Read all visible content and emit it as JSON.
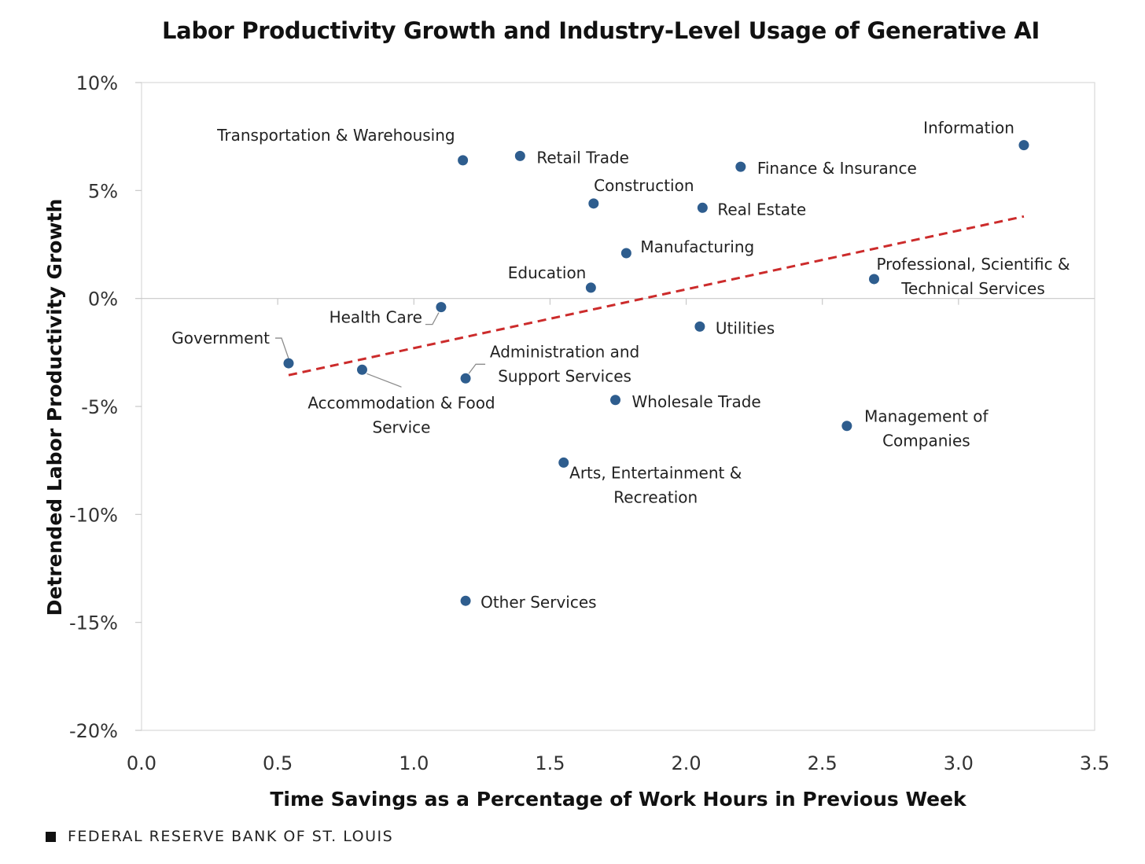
{
  "chart_data": {
    "type": "scatter",
    "title": "Labor Productivity Growth and Industry-Level Usage of Generative AI",
    "xlabel": "Time Savings as a Percentage of Work Hours in Previous Week",
    "ylabel": "Detrended Labor Productivity  Growth",
    "xlim": [
      0.0,
      3.5
    ],
    "ylim": [
      -20,
      10
    ],
    "x_ticks": [
      "0.0",
      "0.5",
      "1.0",
      "1.5",
      "2.0",
      "2.5",
      "3.0",
      "3.5"
    ],
    "y_ticks": [
      "10%",
      "5%",
      "0%",
      "-5%",
      "-10%",
      "-15%",
      "-20%"
    ],
    "grid": false,
    "point_color": "#2e5d8e",
    "trend_color": "#cc2b2b",
    "points": [
      {
        "name": "Government",
        "lines": [
          "Government"
        ],
        "x": 0.54,
        "y": -3.0
      },
      {
        "name": "Accommodation & Food Service",
        "lines": [
          "Accommodation  & Food",
          "Service"
        ],
        "x": 0.81,
        "y": -3.3
      },
      {
        "name": "Health Care",
        "lines": [
          "Health Care"
        ],
        "x": 1.1,
        "y": -0.4
      },
      {
        "name": "Transportation & Warehousing",
        "lines": [
          "Transportation  & Warehousing"
        ],
        "x": 1.18,
        "y": 6.4
      },
      {
        "name": "Administration and Support Services",
        "lines": [
          "Administration  and",
          "Support  Services"
        ],
        "x": 1.19,
        "y": -3.7
      },
      {
        "name": "Other Services",
        "lines": [
          "Other Services"
        ],
        "x": 1.19,
        "y": -14.0
      },
      {
        "name": "Retail Trade",
        "lines": [
          "Retail Trade"
        ],
        "x": 1.39,
        "y": 6.6
      },
      {
        "name": "Arts, Entertainment & Recreation",
        "lines": [
          "Arts, Entertainment  &",
          "Recreation"
        ],
        "x": 1.55,
        "y": -7.6
      },
      {
        "name": "Education",
        "lines": [
          "Education"
        ],
        "x": 1.65,
        "y": 0.5
      },
      {
        "name": "Construction",
        "lines": [
          "Construction"
        ],
        "x": 1.66,
        "y": 4.4
      },
      {
        "name": "Wholesale Trade",
        "lines": [
          "Wholesale Trade"
        ],
        "x": 1.74,
        "y": -4.7
      },
      {
        "name": "Manufacturing",
        "lines": [
          "Manufacturing"
        ],
        "x": 1.78,
        "y": 2.1
      },
      {
        "name": "Utilities",
        "lines": [
          "Utilities"
        ],
        "x": 2.05,
        "y": -1.3
      },
      {
        "name": "Real Estate",
        "lines": [
          "Real Estate"
        ],
        "x": 2.06,
        "y": 4.2
      },
      {
        "name": "Finance & Insurance",
        "lines": [
          "Finance & Insurance"
        ],
        "x": 2.2,
        "y": 6.1
      },
      {
        "name": "Management of Companies",
        "lines": [
          "Management  of",
          "Companies"
        ],
        "x": 2.59,
        "y": -5.9
      },
      {
        "name": "Professional, Scientific & Technical Services",
        "lines": [
          "Professional, Scientific &",
          "Technical Services"
        ],
        "x": 2.69,
        "y": 0.9
      },
      {
        "name": "Information",
        "lines": [
          "Information"
        ],
        "x": 3.24,
        "y": 7.1
      }
    ],
    "trendline": {
      "x": [
        0.54,
        3.24
      ],
      "y": [
        -3.55,
        3.8
      ],
      "style": "dashed"
    }
  },
  "footer": {
    "source": "FEDERAL RESERVE BANK OF ST. LOUIS"
  }
}
